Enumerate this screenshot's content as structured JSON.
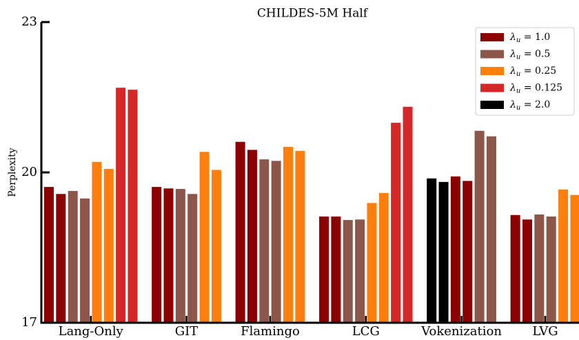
{
  "chart_data": {
    "type": "bar",
    "title": "CHILDES-5M Half",
    "ylabel": "Perplexity",
    "categories": [
      "Lang-Only",
      "GIT",
      "Flamingo",
      "LCG",
      "Vokenization",
      "LVG"
    ],
    "series": [
      {
        "name": "λu = 1.0",
        "color": "#8b0000",
        "values": [
          [
            19.71,
            19.57
          ],
          [
            19.71,
            19.68
          ],
          [
            20.61,
            20.45
          ],
          [
            19.12,
            19.12
          ],
          [
            19.92,
            19.83
          ],
          [
            19.15,
            19.06
          ]
        ]
      },
      {
        "name": "λu = 0.5",
        "color": "#8c564b",
        "values": [
          [
            19.63,
            19.48
          ],
          [
            19.67,
            19.57
          ],
          [
            20.26,
            20.23
          ],
          [
            19.05,
            19.06
          ],
          [
            20.83,
            20.72
          ],
          [
            19.16,
            19.12
          ]
        ]
      },
      {
        "name": "λu = 0.25",
        "color": "#ff7f0e",
        "values": [
          [
            20.21,
            20.07
          ],
          [
            20.41,
            20.05
          ],
          [
            20.51,
            20.43
          ],
          [
            19.39,
            19.59
          ],
          null,
          [
            19.66,
            19.55
          ]
        ]
      },
      {
        "name": "λu = 0.125",
        "color": "#d62728",
        "values": [
          [
            21.69,
            21.65
          ],
          null,
          null,
          [
            20.99,
            21.31
          ],
          null,
          null
        ]
      },
      {
        "name": "λu = 2.0",
        "color": "#000000",
        "values": [
          null,
          null,
          null,
          null,
          [
            19.88,
            19.81
          ],
          null
        ]
      }
    ],
    "ylim": [
      17,
      23
    ],
    "yticks": [
      17,
      20,
      23
    ],
    "legend": "upper right"
  }
}
